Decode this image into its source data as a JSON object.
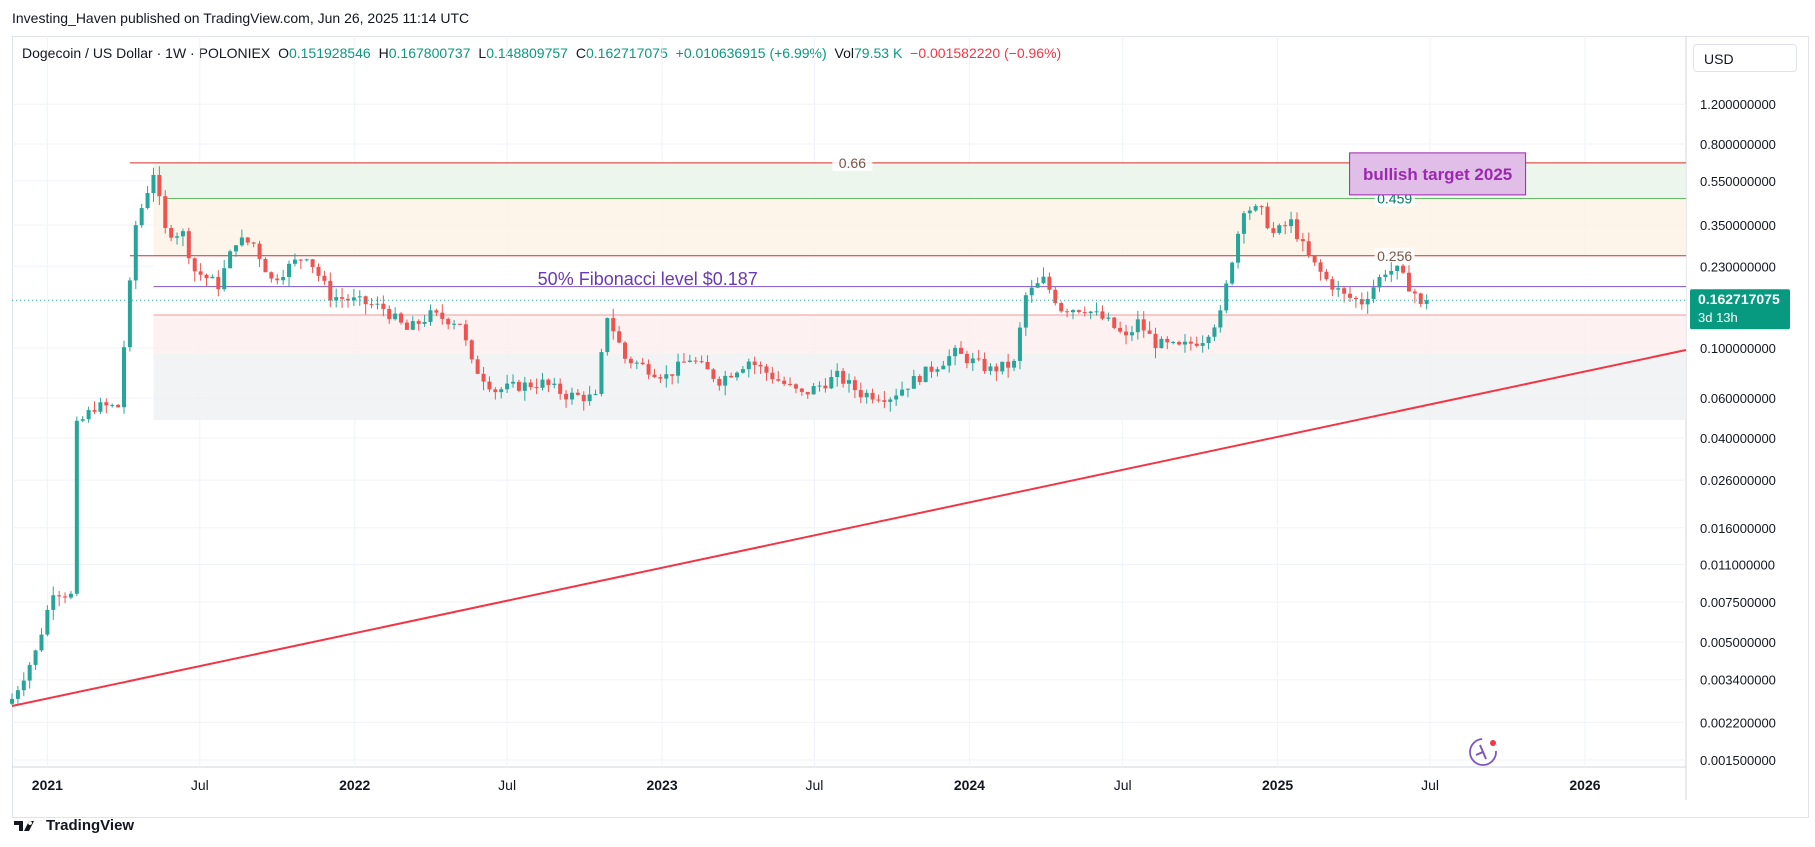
{
  "header": {
    "published": "Investing_Haven published on TradingView.com, Jun 26, 2025 11:14 UTC"
  },
  "legend": {
    "symbol": "Dogecoin / US Dollar · 1W · POLONIEX",
    "o_label": "O",
    "o": "0.151928546",
    "h_label": "H",
    "h": "0.167800737",
    "l_label": "L",
    "l": "0.148809757",
    "c_label": "C",
    "c": "0.162717075",
    "change": "+0.010636915 (+6.99%)",
    "vol_label": "Vol",
    "vol": "79.53 K",
    "vol_change": "−0.001582220 (−0.96%)"
  },
  "currency": "USD",
  "price_tag": {
    "value": "0.162717075",
    "countdown": "3d 13h"
  },
  "footer": {
    "brand": "TradingView"
  },
  "colors": {
    "up": "#26a69a",
    "down": "#ef5350",
    "fib_line_red": "#d32f2f",
    "fib_line_green": "#66bb6a",
    "target": "#9c27b0",
    "trend": "#f23645"
  },
  "chart_data": {
    "type": "candlestick",
    "title": "Dogecoin / US Dollar · 1W · POLONIEX",
    "y_scale": "log",
    "ylim": [
      0.0015,
      1.6
    ],
    "xlim": [
      "2020-11-20",
      "2026-05-01"
    ],
    "y_ticks": [
      "1.200000000",
      "0.800000000",
      "0.550000000",
      "0.350000000",
      "0.230000000",
      "0.100000000",
      "0.060000000",
      "0.040000000",
      "0.026000000",
      "0.016000000",
      "0.011000000",
      "0.007500000",
      "0.005000000",
      "0.003400000",
      "0.002200000",
      "0.001500000"
    ],
    "x_ticks": [
      {
        "label": "2021",
        "date": "2021-01-01",
        "bold": true
      },
      {
        "label": "Jul",
        "date": "2021-07-01"
      },
      {
        "label": "2022",
        "date": "2022-01-01",
        "bold": true
      },
      {
        "label": "Jul",
        "date": "2022-07-01"
      },
      {
        "label": "2023",
        "date": "2023-01-01",
        "bold": true
      },
      {
        "label": "Jul",
        "date": "2023-07-01"
      },
      {
        "label": "2024",
        "date": "2024-01-01",
        "bold": true
      },
      {
        "label": "Jul",
        "date": "2024-07-01"
      },
      {
        "label": "2025",
        "date": "2025-01-01",
        "bold": true
      },
      {
        "label": "Jul",
        "date": "2025-07-01"
      },
      {
        "label": "2026",
        "date": "2026-01-01",
        "bold": true
      }
    ],
    "close_anchors": [
      [
        "2020-11-20",
        0.0028
      ],
      [
        "2020-12-18",
        0.0045
      ],
      [
        "2021-01-08",
        0.0085
      ],
      [
        "2021-01-29",
        0.008
      ],
      [
        "2021-02-05",
        0.045
      ],
      [
        "2021-02-26",
        0.055
      ],
      [
        "2021-03-26",
        0.055
      ],
      [
        "2021-04-16",
        0.35
      ],
      [
        "2021-05-07",
        0.6
      ],
      [
        "2021-05-21",
        0.33
      ],
      [
        "2021-06-11",
        0.32
      ],
      [
        "2021-06-25",
        0.22
      ],
      [
        "2021-07-23",
        0.19
      ],
      [
        "2021-08-13",
        0.3
      ],
      [
        "2021-09-03",
        0.29
      ],
      [
        "2021-09-24",
        0.2
      ],
      [
        "2021-10-22",
        0.24
      ],
      [
        "2021-11-05",
        0.26
      ],
      [
        "2021-12-03",
        0.17
      ],
      [
        "2022-01-07",
        0.16
      ],
      [
        "2022-02-04",
        0.15
      ],
      [
        "2022-03-04",
        0.12
      ],
      [
        "2022-04-01",
        0.14
      ],
      [
        "2022-05-06",
        0.13
      ],
      [
        "2022-05-20",
        0.085
      ],
      [
        "2022-06-17",
        0.065
      ],
      [
        "2022-07-15",
        0.068
      ],
      [
        "2022-08-12",
        0.07
      ],
      [
        "2022-09-09",
        0.062
      ],
      [
        "2022-10-14",
        0.06
      ],
      [
        "2022-10-28",
        0.14
      ],
      [
        "2022-11-18",
        0.09
      ],
      [
        "2023-01-06",
        0.075
      ],
      [
        "2023-02-03",
        0.09
      ],
      [
        "2023-03-10",
        0.072
      ],
      [
        "2023-04-14",
        0.088
      ],
      [
        "2023-05-19",
        0.072
      ],
      [
        "2023-06-16",
        0.062
      ],
      [
        "2023-07-28",
        0.075
      ],
      [
        "2023-08-25",
        0.063
      ],
      [
        "2023-09-29",
        0.061
      ],
      [
        "2023-11-03",
        0.075
      ],
      [
        "2023-12-15",
        0.095
      ],
      [
        "2024-01-26",
        0.08
      ],
      [
        "2024-02-23",
        0.085
      ],
      [
        "2024-03-08",
        0.17
      ],
      [
        "2024-03-29",
        0.2
      ],
      [
        "2024-04-19",
        0.15
      ],
      [
        "2024-05-17",
        0.15
      ],
      [
        "2024-06-14",
        0.13
      ],
      [
        "2024-07-05",
        0.11
      ],
      [
        "2024-07-19",
        0.13
      ],
      [
        "2024-08-09",
        0.105
      ],
      [
        "2024-09-06",
        0.1
      ],
      [
        "2024-10-04",
        0.11
      ],
      [
        "2024-10-25",
        0.14
      ],
      [
        "2024-11-08",
        0.25
      ],
      [
        "2024-11-22",
        0.42
      ],
      [
        "2024-12-13",
        0.4
      ],
      [
        "2024-12-27",
        0.32
      ],
      [
        "2025-01-17",
        0.36
      ],
      [
        "2025-02-07",
        0.25
      ],
      [
        "2025-02-28",
        0.2
      ],
      [
        "2025-03-21",
        0.17
      ],
      [
        "2025-04-11",
        0.16
      ],
      [
        "2025-05-09",
        0.22
      ],
      [
        "2025-05-23",
        0.22
      ],
      [
        "2025-06-13",
        0.175
      ],
      [
        "2025-06-20",
        0.152
      ],
      [
        "2025-06-27",
        0.1627
      ]
    ],
    "last_close": 0.162717075,
    "levels": [
      {
        "label": "0.66",
        "value": 0.66,
        "color": "red"
      },
      {
        "label": "0.459",
        "value": 0.459,
        "color": "green"
      },
      {
        "label": "0.256",
        "value": 0.256,
        "color": "red"
      }
    ],
    "zones": [
      {
        "from": 0.66,
        "to": 0.459,
        "color": "#eaf5ea"
      },
      {
        "from": 0.459,
        "to": 0.256,
        "color": "#fdf3e6"
      },
      {
        "from": 0.256,
        "to": 0.187,
        "color": "#ffffff"
      },
      {
        "from": 0.187,
        "to": 0.14,
        "color": "#ffffff"
      },
      {
        "from": 0.14,
        "to": 0.094,
        "color": "#fdeeee"
      },
      {
        "from": 0.094,
        "to": 0.048,
        "color": "#f0f1f2"
      }
    ],
    "fib_line_value": 0.187,
    "aux_line_value": 0.14,
    "annotations": [
      {
        "text": "50% Fibonacci level $0.187",
        "date": "2022-12-15",
        "value": 0.2
      },
      {
        "text": "bullish target 2025",
        "date": "2025-07-10",
        "value": 0.59
      }
    ],
    "trendline": {
      "start": [
        "2020-11-20",
        0.0026
      ],
      "end": [
        "2026-05-01",
        0.098
      ]
    }
  }
}
